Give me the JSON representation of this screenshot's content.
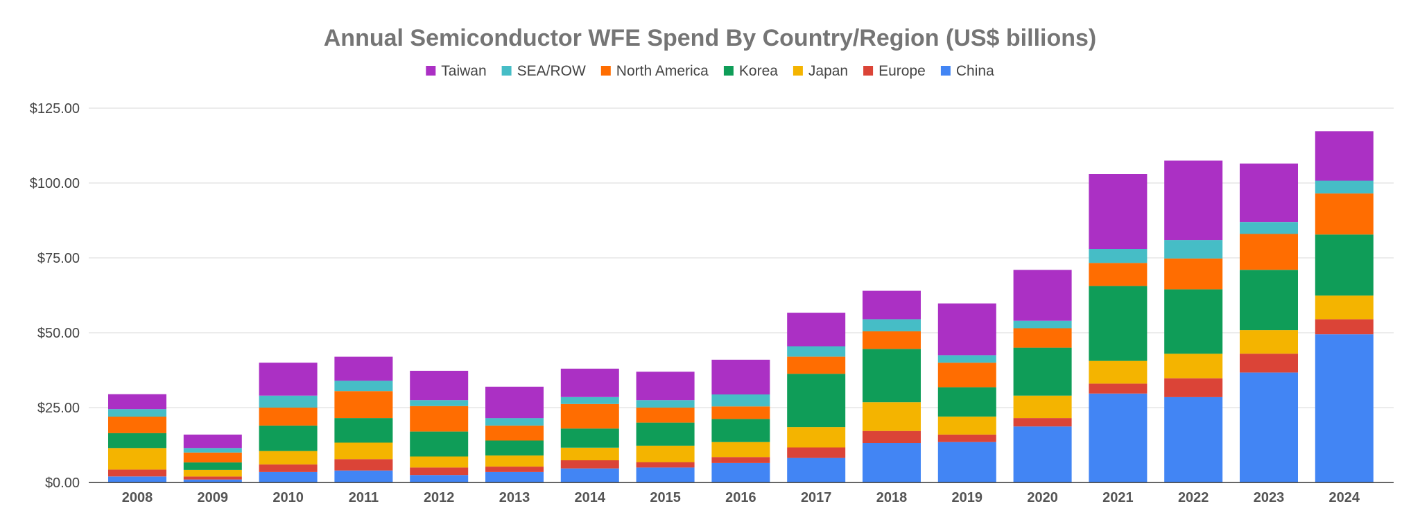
{
  "chart_data": {
    "type": "bar",
    "stacked": true,
    "title": "Annual Semiconductor WFE Spend By Country/Region (US$ billions)",
    "xlabel": "",
    "ylabel": "",
    "ylim": [
      0,
      125
    ],
    "yticks": [
      0,
      25,
      50,
      75,
      100,
      125
    ],
    "ytick_labels": [
      "$0.00",
      "$25.00",
      "$50.00",
      "$75.00",
      "$100.00",
      "$125.00"
    ],
    "grid": true,
    "legend_position": "top",
    "categories": [
      "2008",
      "2009",
      "2010",
      "2011",
      "2012",
      "2013",
      "2014",
      "2015",
      "2016",
      "2017",
      "2018",
      "2019",
      "2020",
      "2021",
      "2022",
      "2023",
      "2024"
    ],
    "series": [
      {
        "name": "China",
        "color": "#4285F4",
        "values": [
          2.0,
          1.0,
          3.5,
          4.0,
          2.5,
          3.5,
          4.7,
          5.0,
          6.5,
          8.2,
          13.2,
          13.5,
          18.7,
          29.7,
          28.5,
          36.7,
          49.5
        ]
      },
      {
        "name": "Europe",
        "color": "#DB4437",
        "values": [
          2.3,
          1.0,
          2.5,
          3.8,
          2.5,
          1.8,
          2.7,
          1.8,
          2.0,
          3.5,
          4.0,
          2.5,
          2.8,
          3.3,
          6.3,
          6.3,
          5.0
        ]
      },
      {
        "name": "Japan",
        "color": "#F4B400",
        "values": [
          7.2,
          2.2,
          4.5,
          5.5,
          3.7,
          3.7,
          4.2,
          5.5,
          5.0,
          6.8,
          9.6,
          6.0,
          7.5,
          7.6,
          8.2,
          7.9,
          7.9
        ]
      },
      {
        "name": "Korea",
        "color": "#0F9D58",
        "values": [
          5.0,
          2.5,
          8.5,
          8.2,
          8.3,
          5.0,
          6.4,
          7.7,
          7.7,
          17.8,
          17.8,
          9.8,
          16.0,
          25.0,
          21.5,
          20.1,
          20.4
        ]
      },
      {
        "name": "North America",
        "color": "#FF6D01",
        "values": [
          5.5,
          3.3,
          6.0,
          9.0,
          8.5,
          5.0,
          8.2,
          5.0,
          4.2,
          5.7,
          5.9,
          8.2,
          6.5,
          7.7,
          10.3,
          12.0,
          13.7
        ]
      },
      {
        "name": "SEA/ROW",
        "color": "#46BDC6",
        "values": [
          2.5,
          1.5,
          4.0,
          3.5,
          2.0,
          2.5,
          2.3,
          2.5,
          4.0,
          3.5,
          4.0,
          2.5,
          2.5,
          4.7,
          6.2,
          4.0,
          4.3
        ]
      },
      {
        "name": "Taiwan",
        "color": "#AB30C4",
        "values": [
          5.0,
          4.5,
          11.0,
          8.0,
          9.8,
          10.5,
          9.5,
          9.5,
          11.6,
          11.2,
          9.5,
          17.3,
          17.0,
          25.0,
          26.5,
          19.5,
          16.5
        ]
      }
    ],
    "legend_order": [
      "Taiwan",
      "SEA/ROW",
      "North America",
      "Korea",
      "Japan",
      "Europe",
      "China"
    ]
  }
}
